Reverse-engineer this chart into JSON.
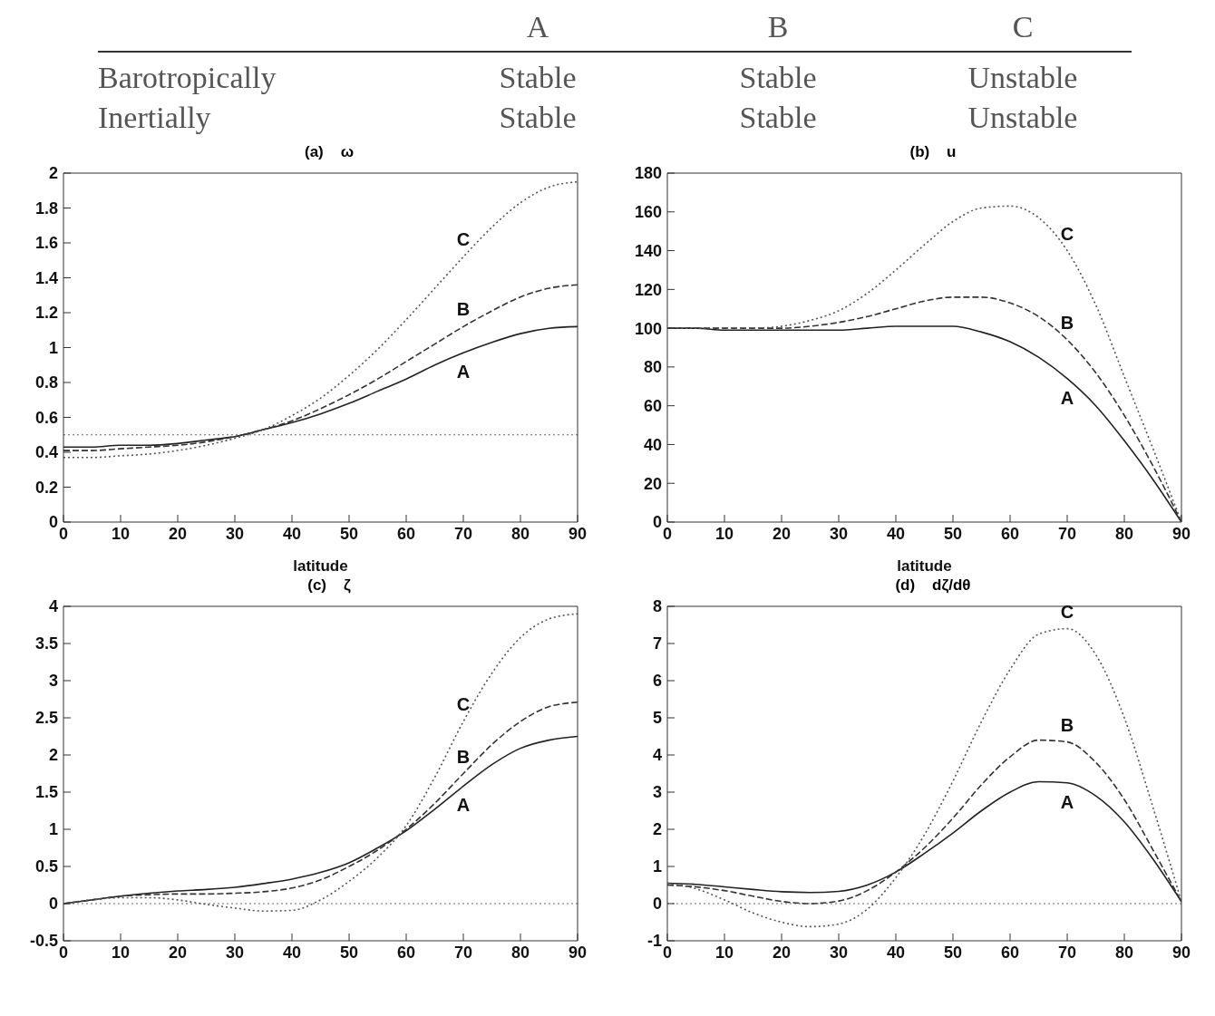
{
  "chart_data": [
    {
      "type": "other",
      "annotations": [
        "A",
        "B",
        "C",
        "Barotropically",
        "Stable",
        "Stable",
        "Unstable",
        "Inertially",
        "Stable",
        "Stable",
        "Unstable"
      ]
    },
    {
      "type": "line",
      "title": "(a)    ω",
      "xlabel": "latitude",
      "x": [
        0,
        5,
        10,
        15,
        20,
        25,
        30,
        35,
        40,
        45,
        50,
        55,
        60,
        65,
        70,
        75,
        80,
        85,
        90
      ],
      "xlim": [
        0,
        90
      ],
      "xticks": [
        0,
        10,
        20,
        30,
        40,
        50,
        60,
        70,
        80,
        90
      ],
      "ylim": [
        0,
        2
      ],
      "yticks": [
        0,
        0.2,
        0.4,
        0.6,
        0.8,
        1,
        1.2,
        1.4,
        1.6,
        1.8,
        2
      ],
      "grid": false,
      "legend": false,
      "marker": "none",
      "series": [
        {
          "name": "A",
          "color": "#222222",
          "line_style": "solid",
          "values": [
            0.43,
            0.43,
            0.44,
            0.44,
            0.45,
            0.47,
            0.49,
            0.53,
            0.57,
            0.62,
            0.68,
            0.75,
            0.82,
            0.9,
            0.97,
            1.03,
            1.08,
            1.11,
            1.12
          ]
        },
        {
          "name": "B",
          "color": "#333333",
          "line_style": "dashed",
          "values": [
            0.41,
            0.41,
            0.42,
            0.43,
            0.44,
            0.46,
            0.49,
            0.53,
            0.58,
            0.65,
            0.73,
            0.82,
            0.92,
            1.02,
            1.12,
            1.21,
            1.29,
            1.34,
            1.36
          ]
        },
        {
          "name": "C",
          "color": "#555555",
          "line_style": "dotted",
          "values": [
            0.37,
            0.37,
            0.38,
            0.39,
            0.41,
            0.44,
            0.48,
            0.53,
            0.61,
            0.71,
            0.84,
            0.99,
            1.16,
            1.34,
            1.52,
            1.69,
            1.83,
            1.92,
            1.95
          ]
        }
      ],
      "ref_lines": [
        {
          "axis": "y",
          "value": 0.5,
          "color": "#666666",
          "line_style": "dotted"
        }
      ]
    },
    {
      "type": "line",
      "title": "(b)    u",
      "xlabel": "latitude",
      "x": [
        0,
        5,
        10,
        15,
        20,
        25,
        30,
        35,
        40,
        45,
        50,
        55,
        60,
        65,
        70,
        75,
        80,
        85,
        90
      ],
      "xlim": [
        0,
        90
      ],
      "xticks": [
        0,
        10,
        20,
        30,
        40,
        50,
        60,
        70,
        80,
        90
      ],
      "ylim": [
        0,
        180
      ],
      "yticks": [
        0,
        20,
        40,
        60,
        80,
        100,
        120,
        140,
        160,
        180
      ],
      "grid": false,
      "legend": false,
      "marker": "none",
      "series": [
        {
          "name": "A",
          "color": "#222222",
          "line_style": "solid",
          "values": [
            100,
            100,
            99,
            99,
            99,
            99,
            99,
            100,
            101,
            101,
            101,
            98,
            93,
            85,
            74,
            60,
            42,
            22,
            0
          ]
        },
        {
          "name": "B",
          "color": "#333333",
          "line_style": "dashed",
          "values": [
            100,
            100,
            100,
            100,
            100,
            101,
            103,
            106,
            110,
            114,
            116,
            116,
            113,
            106,
            94,
            77,
            55,
            29,
            0
          ]
        },
        {
          "name": "C",
          "color": "#555555",
          "line_style": "dotted",
          "values": [
            100,
            100,
            100,
            100,
            101,
            104,
            109,
            118,
            130,
            143,
            155,
            162,
            163,
            157,
            140,
            112,
            75,
            38,
            0
          ]
        }
      ]
    },
    {
      "type": "line",
      "title": "(c)    ζ",
      "x": [
        0,
        5,
        10,
        15,
        20,
        25,
        30,
        35,
        40,
        45,
        50,
        55,
        60,
        65,
        70,
        75,
        80,
        85,
        90
      ],
      "xlim": [
        0,
        90
      ],
      "xticks": [
        0,
        10,
        20,
        30,
        40,
        50,
        60,
        70,
        80,
        90
      ],
      "ylim": [
        -0.5,
        4
      ],
      "yticks": [
        -0.5,
        0,
        0.5,
        1,
        1.5,
        2,
        2.5,
        3,
        3.5,
        4
      ],
      "grid": false,
      "legend": false,
      "marker": "none",
      "series": [
        {
          "name": "A",
          "color": "#222222",
          "line_style": "solid",
          "values": [
            0,
            0.05,
            0.1,
            0.14,
            0.17,
            0.19,
            0.22,
            0.27,
            0.33,
            0.42,
            0.55,
            0.75,
            0.98,
            1.27,
            1.58,
            1.87,
            2.09,
            2.2,
            2.25
          ]
        },
        {
          "name": "B",
          "color": "#333333",
          "line_style": "dashed",
          "values": [
            0,
            0.05,
            0.1,
            0.12,
            0.13,
            0.13,
            0.14,
            0.16,
            0.21,
            0.32,
            0.5,
            0.72,
            1.0,
            1.35,
            1.75,
            2.14,
            2.45,
            2.65,
            2.71
          ]
        },
        {
          "name": "C",
          "color": "#555555",
          "line_style": "dotted",
          "values": [
            0,
            0.05,
            0.08,
            0.08,
            0.05,
            -0.01,
            -0.06,
            -0.1,
            -0.09,
            0.05,
            0.3,
            0.62,
            1.05,
            1.7,
            2.45,
            3.1,
            3.58,
            3.83,
            3.9
          ]
        }
      ],
      "ref_lines": [
        {
          "axis": "y",
          "value": 0,
          "color": "#666666",
          "line_style": "dotted"
        }
      ]
    },
    {
      "type": "line",
      "title": "(d)    dζ/dθ",
      "x": [
        0,
        5,
        10,
        15,
        20,
        25,
        30,
        35,
        40,
        45,
        50,
        55,
        60,
        65,
        70,
        75,
        80,
        85,
        90
      ],
      "xlim": [
        0,
        90
      ],
      "xticks": [
        0,
        10,
        20,
        30,
        40,
        50,
        60,
        70,
        80,
        90
      ],
      "ylim": [
        -1,
        8
      ],
      "yticks": [
        -1,
        0,
        1,
        2,
        3,
        4,
        5,
        6,
        7,
        8
      ],
      "grid": false,
      "legend": false,
      "marker": "none",
      "series": [
        {
          "name": "A",
          "color": "#222222",
          "line_style": "solid",
          "values": [
            0.55,
            0.52,
            0.45,
            0.38,
            0.32,
            0.3,
            0.33,
            0.5,
            0.85,
            1.35,
            1.9,
            2.5,
            3.0,
            3.28,
            3.25,
            2.9,
            2.2,
            1.2,
            0.05
          ]
        },
        {
          "name": "B",
          "color": "#333333",
          "line_style": "dashed",
          "values": [
            0.5,
            0.45,
            0.35,
            0.2,
            0.06,
            0,
            0.07,
            0.35,
            0.85,
            1.5,
            2.3,
            3.2,
            3.95,
            4.4,
            4.35,
            3.8,
            2.8,
            1.45,
            0.05
          ]
        },
        {
          "name": "C",
          "color": "#555555",
          "line_style": "dotted",
          "values": [
            0.55,
            0.4,
            0.1,
            -0.25,
            -0.5,
            -0.62,
            -0.55,
            -0.15,
            0.7,
            1.85,
            3.3,
            4.9,
            6.3,
            7.25,
            7.4,
            6.7,
            5.0,
            2.6,
            0.05
          ]
        }
      ],
      "ref_lines": [
        {
          "axis": "y",
          "value": 0,
          "color": "#666666",
          "line_style": "dotted"
        }
      ]
    }
  ]
}
